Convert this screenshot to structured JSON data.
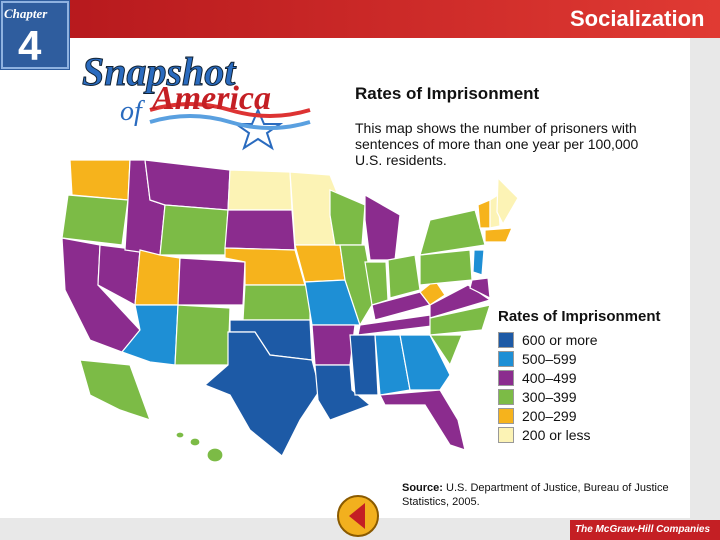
{
  "header": {
    "chapter_label": "Chapter",
    "chapter_number": "4",
    "section": "Socialization"
  },
  "logo": {
    "line1": "Snapshot",
    "line2": "of",
    "line3": "America"
  },
  "map": {
    "title": "Rates of Imprisonment",
    "description": "This map shows the number of prisoners with sentences of more than one year per 100,000 U.S. residents.",
    "legend": {
      "title": "Rates of Imprisonment",
      "items": [
        {
          "label": "600 or more",
          "color": "#1d5aa6"
        },
        {
          "label": "500–599",
          "color": "#1e8fd5"
        },
        {
          "label": "400–499",
          "color": "#8b2c8e"
        },
        {
          "label": "300–399",
          "color": "#7cbb46"
        },
        {
          "label": "200–299",
          "color": "#f6b31c"
        },
        {
          "label": "200 or less",
          "color": "#fcf3b5"
        }
      ]
    },
    "source_label": "Source:",
    "source_text": "U.S. Department of Justice, Bureau of Justice Statistics, 2005."
  },
  "footer": {
    "publisher": "The McGraw-Hill Companies"
  }
}
